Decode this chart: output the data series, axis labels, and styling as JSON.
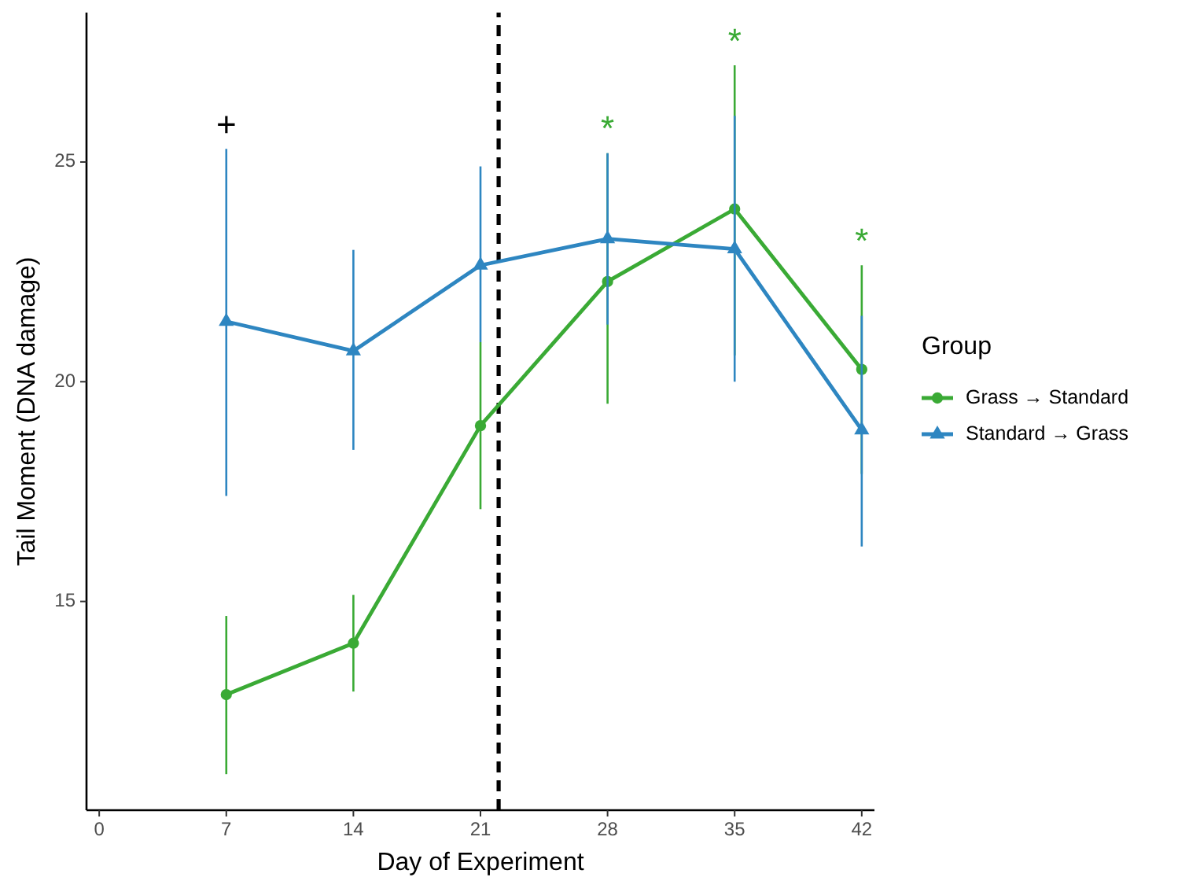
{
  "chart_data": {
    "type": "line",
    "xlabel": "Day of Experiment",
    "ylabel": "Tail Moment (DNA damage)",
    "legend_title": "Group",
    "legend": "right",
    "grid": false,
    "x": [
      7,
      14,
      21,
      28,
      35,
      42
    ],
    "xlim": [
      -0.7,
      42.7
    ],
    "xticks": [
      0,
      7,
      14,
      21,
      28,
      35,
      42
    ],
    "ylim": [
      10.25,
      28.4
    ],
    "yticks": [
      15,
      20,
      25
    ],
    "series": [
      {
        "name": "Grass → Standard",
        "color": "#3aaa35",
        "marker": "circle",
        "values": [
          12.88,
          14.05,
          19.0,
          22.28,
          23.93,
          20.28
        ],
        "errors": [
          [
            11.07,
            14.67
          ],
          [
            12.95,
            15.15
          ],
          [
            17.1,
            20.9
          ],
          [
            19.5,
            25.2
          ],
          [
            20.6,
            27.2
          ],
          [
            17.9,
            22.65
          ]
        ]
      },
      {
        "name": "Standard → Grass",
        "color": "#2e86c1",
        "marker": "triangle",
        "values": [
          21.37,
          20.7,
          22.65,
          23.25,
          23.02,
          18.9
        ],
        "errors": [
          [
            17.4,
            25.3
          ],
          [
            18.45,
            23.0
          ],
          [
            20.9,
            24.9
          ],
          [
            21.3,
            25.2
          ],
          [
            20.0,
            26.05
          ],
          [
            16.25,
            21.5
          ]
        ]
      }
    ],
    "ref_lines": [
      {
        "axis": "x",
        "value": 22,
        "line_style": "dashed",
        "color": "#000000"
      }
    ],
    "annotations": [
      "+",
      "*",
      "*",
      "*"
    ]
  }
}
